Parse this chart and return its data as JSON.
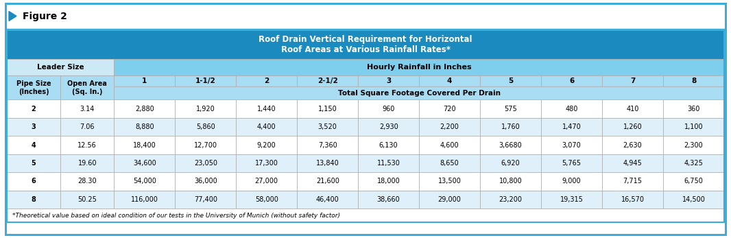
{
  "main_title_line1": "Roof Drain Vertical Requirement for Horizontal",
  "main_title_line2": "Roof Areas at Various Rainfall Rates*",
  "leader_size_label": "Leader Size",
  "hourly_rainfall_label": "Hourly Rainfall in Inches",
  "pipe_size_label": "Pipe Size\n(Inches)",
  "open_area_label": "Open Area\n(Sq. In.)",
  "rainfall_headers": [
    "1",
    "1-1/2",
    "2",
    "2-1/2",
    "3",
    "4",
    "5",
    "6",
    "7",
    "8"
  ],
  "subheader": "Total Square Footage Covered Per Drain",
  "rows": [
    [
      "2",
      "3.14",
      "2,880",
      "1,920",
      "1,440",
      "1,150",
      "960",
      "720",
      "575",
      "480",
      "410",
      "360"
    ],
    [
      "3",
      "7.06",
      "8,880",
      "5,860",
      "4,400",
      "3,520",
      "2,930",
      "2,200",
      "1,760",
      "1,470",
      "1,260",
      "1,100"
    ],
    [
      "4",
      "12.56",
      "18,400",
      "12,700",
      "9,200",
      "7,360",
      "6,130",
      "4,600",
      "3,6680",
      "3,070",
      "2,630",
      "2,300"
    ],
    [
      "5",
      "19.60",
      "34,600",
      "23,050",
      "17,300",
      "13,840",
      "11,530",
      "8,650",
      "6,920",
      "5,765",
      "4,945",
      "4,325"
    ],
    [
      "6",
      "28.30",
      "54,000",
      "36,000",
      "27,000",
      "21,600",
      "18,000",
      "13,500",
      "10,800",
      "9,000",
      "7,715",
      "6,750"
    ],
    [
      "8",
      "50.25",
      "116,000",
      "77,400",
      "58,000",
      "46,400",
      "38,660",
      "29,000",
      "23,200",
      "19,315",
      "16,570",
      "14,500"
    ]
  ],
  "footnote": "*Theoretical value based on ideal condition of our tests in the University of Munich (without safety factor)",
  "figure_label": "Figure 2",
  "color_title_bg": "#1a8abf",
  "color_leader_bg": "#cce9f5",
  "color_hourly_bg": "#7ecfee",
  "color_col_header_bg": "#a8ddf4",
  "color_subheader_bg": "#a8ddf4",
  "color_row_white": "#ffffff",
  "color_row_light": "#dff0fa",
  "color_border_outer": "#3aadd9",
  "color_border_inner": "#aaaaaa",
  "color_title_text": "#ffffff",
  "color_header_dark_text": "#1a1a1a",
  "color_white": "#ffffff"
}
